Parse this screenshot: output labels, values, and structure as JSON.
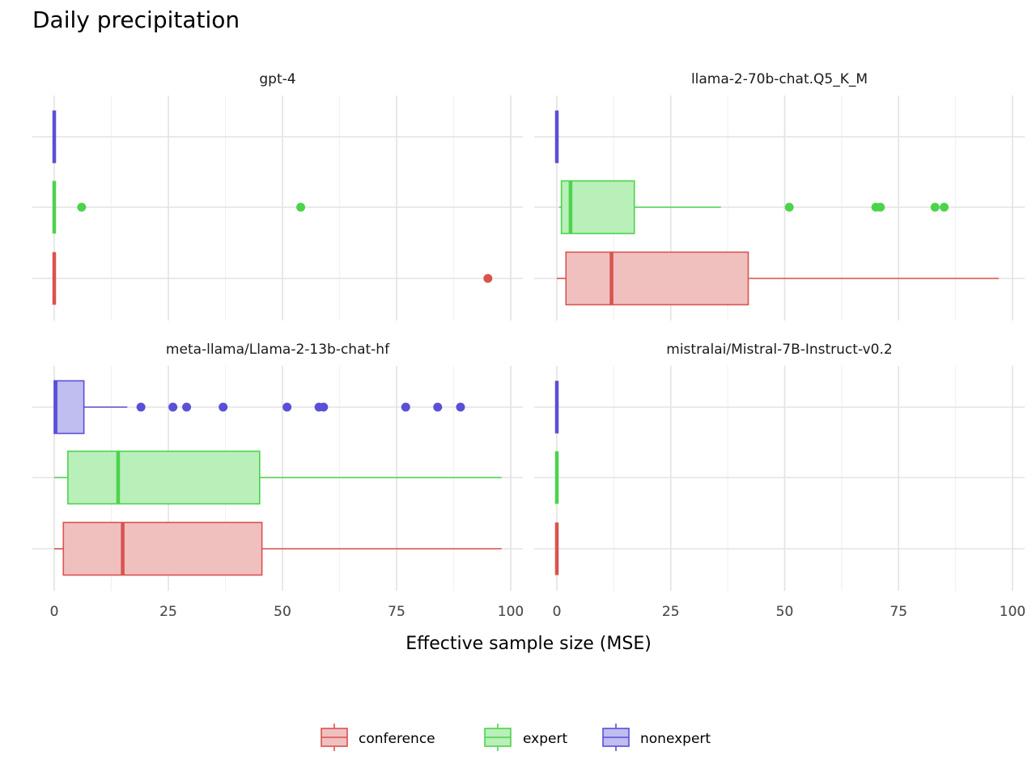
{
  "chart_data": {
    "type": "boxplot",
    "title": "Daily precipitation",
    "xlabel": "Effective sample size (MSE)",
    "ylabel": "",
    "xlim": [
      0,
      100
    ],
    "xticks": [
      0,
      25,
      50,
      75,
      100
    ],
    "grid": true,
    "legend_position": "bottom",
    "groups": [
      "conference",
      "expert",
      "nonexpert"
    ],
    "colors": {
      "conference": "#d9534f",
      "expert": "#4cd34c",
      "nonexpert": "#5a4fd6"
    },
    "fills": {
      "conference": "#f0c0bf",
      "expert": "#b9efb9",
      "nonexpert": "#c0bdf1"
    },
    "panels": [
      {
        "name": "gpt-4",
        "boxes": [
          {
            "group": "nonexpert",
            "min": 0,
            "q1": 0,
            "median": 0,
            "q3": 0,
            "max": 0,
            "outliers": []
          },
          {
            "group": "expert",
            "min": 0,
            "q1": 0,
            "median": 0,
            "q3": 0,
            "max": 0,
            "outliers": [
              6,
              54
            ]
          },
          {
            "group": "conference",
            "min": 0,
            "q1": 0,
            "median": 0,
            "q3": 0,
            "max": 0,
            "outliers": [
              95
            ]
          }
        ]
      },
      {
        "name": "llama-2-70b-chat.Q5_K_M",
        "boxes": [
          {
            "group": "nonexpert",
            "min": 0,
            "q1": 0,
            "median": 0,
            "q3": 0,
            "max": 0,
            "outliers": []
          },
          {
            "group": "expert",
            "min": 0.5,
            "q1": 1,
            "median": 3,
            "q3": 17,
            "max": 36,
            "outliers": [
              51,
              70,
              71,
              83,
              85
            ]
          },
          {
            "group": "conference",
            "min": 0,
            "q1": 2,
            "median": 12,
            "q3": 42,
            "max": 97,
            "outliers": []
          }
        ]
      },
      {
        "name": "meta-llama/Llama-2-13b-chat-hf",
        "boxes": [
          {
            "group": "nonexpert",
            "min": 0,
            "q1": 0,
            "median": 0.3,
            "q3": 6.5,
            "max": 16,
            "outliers": [
              19,
              26,
              29,
              37,
              51,
              58,
              59,
              77,
              84,
              89
            ]
          },
          {
            "group": "expert",
            "min": 0,
            "q1": 3,
            "median": 14,
            "q3": 45,
            "max": 98,
            "outliers": []
          },
          {
            "group": "conference",
            "min": 0,
            "q1": 2,
            "median": 15,
            "q3": 45.5,
            "max": 98,
            "outliers": []
          }
        ]
      },
      {
        "name": "mistralai/Mistral-7B-Instruct-v0.2",
        "boxes": [
          {
            "group": "nonexpert",
            "min": 0,
            "q1": 0,
            "median": 0,
            "q3": 0,
            "max": 0,
            "outliers": []
          },
          {
            "group": "expert",
            "min": 0,
            "q1": 0,
            "median": 0,
            "q3": 0,
            "max": 0,
            "outliers": []
          },
          {
            "group": "conference",
            "min": 0,
            "q1": 0,
            "median": 0,
            "q3": 0,
            "max": 0,
            "outliers": []
          }
        ]
      }
    ]
  }
}
